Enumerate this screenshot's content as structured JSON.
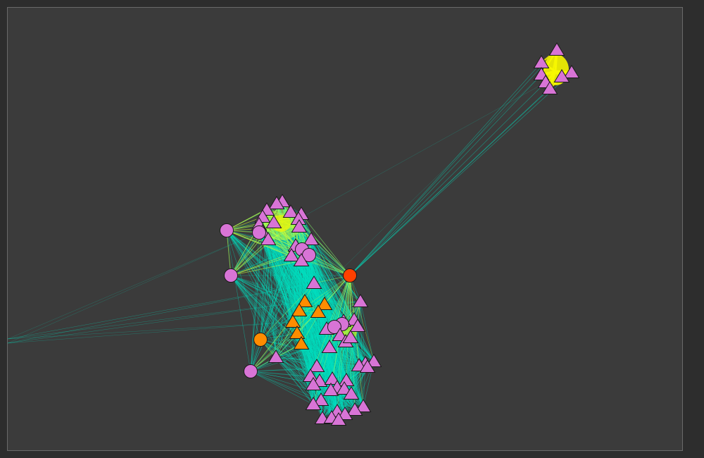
{
  "canvas": {
    "background": "#3b3b3b",
    "border": "#6a6a6a"
  },
  "edge_colors": {
    "dense": "#00e0c0",
    "strong": "#c8ff3c",
    "peak": "#f7f700"
  },
  "node_styles": {
    "pink-triangle": {
      "shape": "triangle",
      "fill": "#d874d6"
    },
    "pink-circle": {
      "shape": "circle",
      "fill": "#d874d6"
    },
    "orange-triangle": {
      "shape": "triangle",
      "fill": "#ff8c00"
    },
    "orange-circle": {
      "shape": "circle",
      "fill": "#ff8c00"
    },
    "red-circle": {
      "shape": "circle",
      "fill": "#ff4000"
    }
  }
}
